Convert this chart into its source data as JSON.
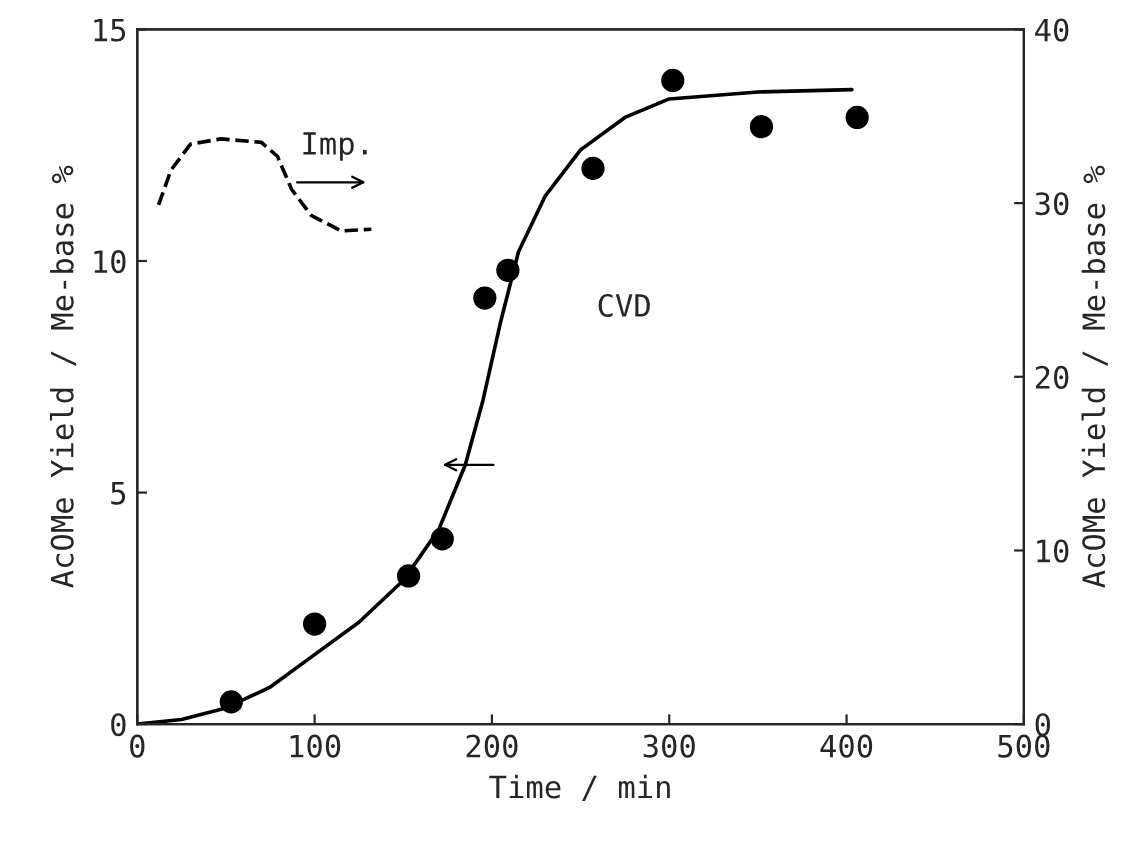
{
  "chart_data": {
    "type": "scatter",
    "xlabel": "Time / min",
    "ylabel": "AcOMe Yield / Me-base %",
    "y2label": "AcOMe Yield / Me-base %",
    "series": [
      {
        "name": "CVD",
        "color": "#000000",
        "marker": "circle",
        "x": [
          53,
          100,
          153,
          172,
          196,
          209,
          257,
          302,
          352,
          406
        ],
        "values": [
          0.48,
          2.16,
          3.2,
          4.0,
          9.2,
          9.8,
          12.0,
          13.9,
          12.9,
          13.1
        ]
      },
      {
        "type": "line",
        "color": "#000000",
        "line_style": "solid",
        "marker": "none",
        "x": [
          0,
          25,
          50,
          75,
          100,
          125,
          150,
          170,
          185,
          195,
          205,
          215,
          230,
          250,
          275,
          300,
          350,
          403
        ],
        "values": [
          0,
          0.1,
          0.35,
          0.8,
          1.5,
          2.2,
          3.1,
          4.2,
          5.6,
          7.0,
          8.7,
          10.2,
          11.4,
          12.4,
          13.1,
          13.5,
          13.65,
          13.7
        ]
      },
      {
        "name": "Imp.",
        "type": "line",
        "axis": "y2",
        "color": "#000000",
        "line_style": "dashed",
        "marker": "none",
        "x": [
          12,
          19,
          30,
          47,
          70,
          79,
          87,
          98,
          115,
          132
        ],
        "values": [
          29.9,
          31.9,
          33.4,
          33.7,
          33.5,
          32.7,
          30.8,
          29.3,
          28.4,
          28.5
        ]
      }
    ],
    "xlim": [
      0,
      500
    ],
    "xticks": [
      0,
      100,
      200,
      300,
      400,
      500
    ],
    "ylim": [
      0,
      15
    ],
    "yticks": [
      0,
      5,
      10,
      15
    ],
    "y2lim": [
      0,
      40
    ],
    "y2ticks": [
      0,
      10,
      20,
      30,
      40
    ],
    "grid": false,
    "legend": false
  }
}
